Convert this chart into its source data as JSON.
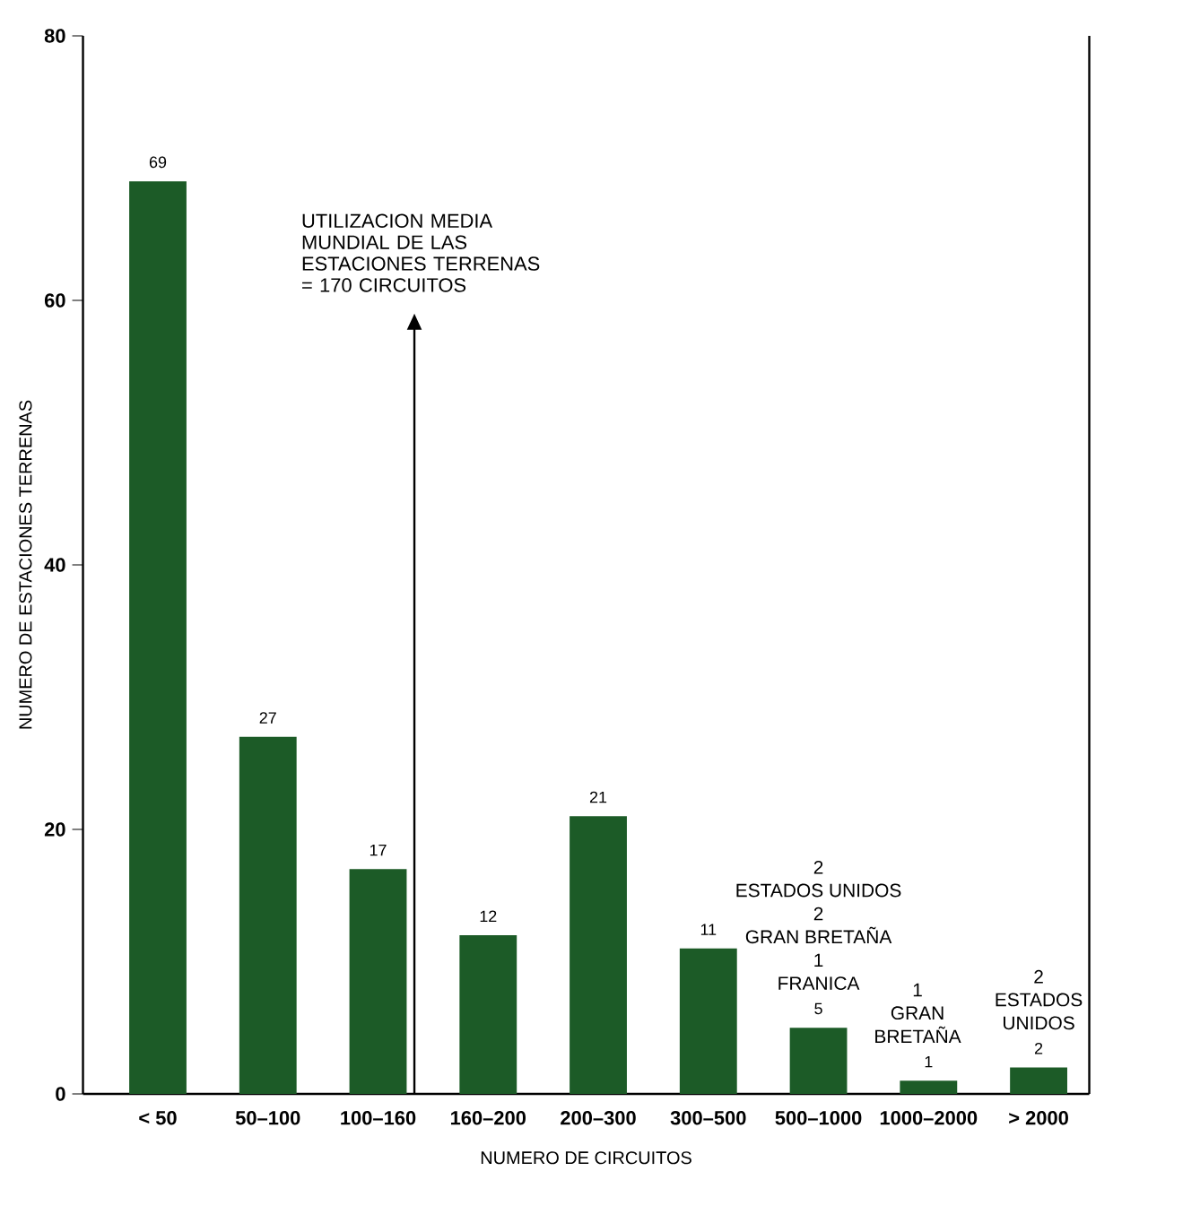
{
  "chart_data": {
    "type": "bar",
    "xlabel": "NUMERO DE CIRCUITOS",
    "ylabel": "NUMERO DE ESTACIONES TERRENAS",
    "categories": [
      "< 50",
      "50–100",
      "100–160",
      "160–200",
      "200–300",
      "300–500",
      "500–1000",
      "1000–2000",
      "> 2000"
    ],
    "values": [
      69,
      27,
      17,
      12,
      21,
      11,
      5,
      1,
      2
    ],
    "color": "#1c5b27",
    "data_labels": true,
    "ylim": [
      0,
      80
    ],
    "yticks": [
      0,
      20,
      40,
      60,
      80
    ],
    "annotations": [
      "UTILIZACION MEDIA MUNDIAL DE LAS ESTACIONES TERRENAS = 170 CIRCUITOS",
      "2",
      "ESTADOS UNIDOS",
      "2",
      "GRAN BRETAÑA",
      "1",
      "FRANICA",
      "1",
      "GRAN",
      "BRETAÑA",
      "2",
      "ESTADOS",
      "UNIDOS"
    ]
  }
}
